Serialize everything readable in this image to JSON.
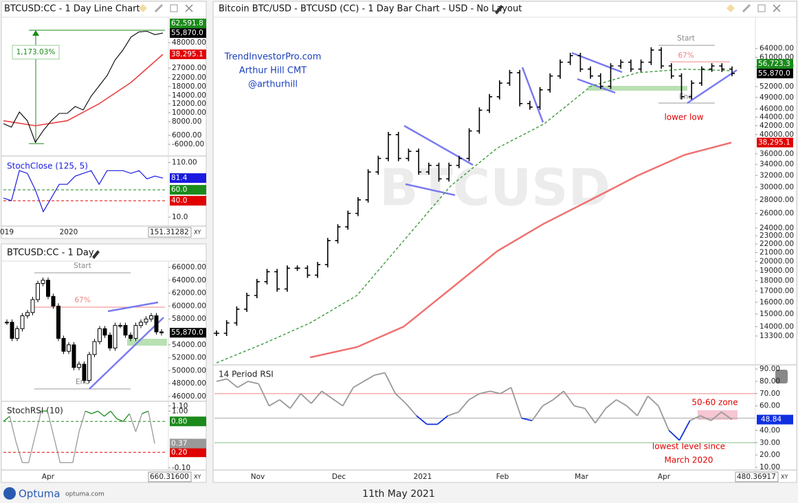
{
  "line_chart": {
    "title": "BTCUSD:CC - 1 Day Line Chart",
    "type": "line",
    "values": [
      7700,
      7200,
      10150,
      8200,
      -3230,
      6700,
      8200,
      9850,
      9850,
      11400,
      10600,
      13830,
      18300,
      23070,
      33590,
      42030,
      52590,
      56830,
      57350,
      54560,
      55870
    ],
    "color": "#000000",
    "ma": {
      "values": [
        8200,
        7400,
        8200,
        12000,
        19850,
        38295.1
      ],
      "color": "#e84040"
    },
    "yticks": [
      {
        "value": 48000,
        "label": "48000.00"
      },
      {
        "value": 27000,
        "label": "27000.00"
      },
      {
        "value": 22000,
        "label": "22000.00"
      },
      {
        "value": 18000,
        "label": "18000.00"
      },
      {
        "value": 14000,
        "label": "14000.00"
      },
      {
        "value": 12000,
        "label": "12000.00"
      },
      {
        "value": 10000,
        "label": "10000.00"
      },
      {
        "value": 8000,
        "label": "8000.00"
      },
      {
        "value": 6000,
        "label": "6000.00"
      },
      {
        "value": -6000,
        "label": "-6000.00"
      }
    ],
    "boxes": [
      {
        "value": 62591.8,
        "label": "62,591.8",
        "color": "#1a8a1a"
      },
      {
        "value": 55870,
        "label": "55,870.0",
        "color": "#000000"
      },
      {
        "value": 38295.1,
        "label": "38,295.1",
        "color": "#e00000"
      }
    ],
    "gain": "1,173.03%",
    "gain_color": "#1a8a1a"
  },
  "stoch_close": {
    "title": "StochClose (125, 5)",
    "type": "line",
    "values": [
      45,
      40,
      95,
      90,
      60,
      20,
      45,
      70,
      70,
      85,
      90,
      95,
      70,
      95,
      95,
      95,
      90,
      95,
      80,
      85,
      81.4
    ],
    "color": "#1a1ae0",
    "ylim": [
      -5,
      118
    ],
    "yticks": [
      {
        "value": 110,
        "label": "110.00"
      },
      {
        "value": 10,
        "label": "10.0"
      }
    ],
    "levels": [
      {
        "value": 60,
        "label": "60.0",
        "color": "#1a8a1a"
      },
      {
        "value": 40,
        "label": "40.0",
        "color": "#e00000"
      }
    ],
    "last": {
      "value": 81.4,
      "label": "81.4",
      "color": "#1a1ae0"
    },
    "xticks": [
      "019",
      "2020"
    ],
    "scale_value": "151.31282",
    "xy": "XY"
  },
  "day_chart": {
    "title": "BTCUSD:CC - 1 Day",
    "type": "candlestick",
    "values": [
      57500,
      55000,
      56500,
      58500,
      59000,
      61000,
      63500,
      64000,
      61500,
      60000,
      55000,
      53000,
      54000,
      50500,
      51000,
      48500,
      52500,
      54500,
      56500,
      55500,
      53500,
      57000,
      57000,
      55500,
      55000,
      57000,
      57500,
      58000,
      58500,
      56000,
      55870
    ],
    "ylim": [
      45470,
      66960
    ],
    "yticks": [
      {
        "value": 66000,
        "label": "66000.00"
      },
      {
        "value": 64000,
        "label": "64000.00"
      },
      {
        "value": 62000,
        "label": "62000.00"
      },
      {
        "value": 60000,
        "label": "60000.00"
      },
      {
        "value": 58000,
        "label": "58000.00"
      },
      {
        "value": 54000,
        "label": "54000.00"
      },
      {
        "value": 52000,
        "label": "52000.00"
      },
      {
        "value": 50000,
        "label": "50000.00"
      },
      {
        "value": 48000,
        "label": "48000.00"
      },
      {
        "value": 46000,
        "label": "46000.00"
      }
    ],
    "boxes": [
      {
        "value": 55870,
        "label": "55,870.0",
        "color": "#000000"
      }
    ],
    "start": "Start",
    "fib": "67%",
    "end": "End"
  },
  "stoch_rsi": {
    "title": "StochRSI (10)",
    "type": "line",
    "values": [
      0.8,
      0.9,
      0.4,
      0.0,
      0.0,
      0.5,
      1.0,
      1.0,
      0.5,
      0.0,
      0.0,
      0.0,
      0.6,
      1.0,
      0.95,
      1.0,
      0.9,
      1.0,
      0.85,
      0.8,
      0.95,
      0.6,
      0.95,
      1.0,
      0.37
    ],
    "color": "#999999",
    "high_color": "#1a8a1a",
    "ylim": [
      -0.13,
      1.15
    ],
    "yticks": [
      {
        "value": 1.1,
        "label": "1.10"
      },
      {
        "value": 1.0,
        "label": "1.00"
      },
      {
        "value": -0.1,
        "label": "-0.10"
      }
    ],
    "levels": [
      {
        "value": 0.8,
        "label": "0.80",
        "color": "#1a8a1a"
      },
      {
        "value": 0.2,
        "label": "0.20",
        "color": "#e00000"
      }
    ],
    "last": {
      "value": 0.37,
      "label": "0.37",
      "color": "#999999"
    },
    "xticks": [
      "Apr"
    ],
    "scale_value": "660.31600",
    "xy": "XY"
  },
  "main": {
    "title": "Bitcoin BTC/USD - BTCUSD (CC) - 1 Day Bar Chart - USD - No Layout",
    "type": "bar",
    "log_scale": true,
    "watermark": "BTCUSD",
    "price": {
      "color": "#000000",
      "values": [
        13500,
        14280,
        15400,
        16600,
        17900,
        18900,
        17200,
        19270,
        19270,
        18550,
        19650,
        22400,
        24150,
        26000,
        28000,
        32600,
        35100,
        40000,
        35100,
        36500,
        32600,
        33800,
        31400,
        33800,
        35100,
        40800,
        45700,
        49200,
        53000,
        56100,
        47400,
        46500,
        51100,
        55100,
        59400,
        61600,
        57200,
        55100,
        52100,
        58200,
        59400,
        57200,
        59400,
        63500,
        58200,
        55100,
        49200,
        53000,
        57200,
        58200,
        57200,
        55870
      ]
    },
    "ma_fast": {
      "color": "#3a9a3a",
      "dashed": true,
      "values": [
        11480,
        12750,
        14280,
        16600,
        22400,
        30200,
        37150,
        42400,
        52100,
        56100,
        57200,
        56723.3
      ]
    },
    "ma_slow": {
      "color": "#f07070",
      "dashed": false,
      "values": [
        null,
        null,
        11830,
        12520,
        14000,
        17200,
        21160,
        24600,
        28000,
        31970,
        35800,
        38295.1
      ]
    },
    "ylim": [
      11400,
      76000
    ],
    "yticks": [
      {
        "value": 64000,
        "label": "64000.00"
      },
      {
        "value": 61000,
        "label": "61000.00"
      },
      {
        "value": 58000,
        "label": "58000.00"
      },
      {
        "value": 52000,
        "label": "52000.00"
      },
      {
        "value": 49000,
        "label": "49000.00"
      },
      {
        "value": 46000,
        "label": "46000.00"
      },
      {
        "value": 44000,
        "label": "44000.00"
      },
      {
        "value": 42000,
        "label": "42000.00"
      },
      {
        "value": 40000,
        "label": "40000.00"
      },
      {
        "value": 36000,
        "label": "36000.00"
      },
      {
        "value": 34000,
        "label": "34000.00"
      },
      {
        "value": 32000,
        "label": "32000.00"
      },
      {
        "value": 30000,
        "label": "30000.00"
      },
      {
        "value": 28000,
        "label": "28000.00"
      },
      {
        "value": 26000,
        "label": "26000.00"
      },
      {
        "value": 24000,
        "label": "24000.00"
      },
      {
        "value": 23000,
        "label": "23000.00"
      },
      {
        "value": 22000,
        "label": "22000.00"
      },
      {
        "value": 21000,
        "label": "21000.00"
      },
      {
        "value": 20000,
        "label": "20000.00"
      },
      {
        "value": 19000,
        "label": "19000.00"
      },
      {
        "value": 18000,
        "label": "18000.00"
      },
      {
        "value": 17000,
        "label": "17000.00"
      },
      {
        "value": 16000,
        "label": "16000.00"
      },
      {
        "value": 15000,
        "label": "15000.00"
      },
      {
        "value": 14000,
        "label": "14000.00"
      },
      {
        "value": 13300,
        "label": "13300.00"
      }
    ],
    "boxes": [
      {
        "value": 56723.3,
        "label": "56,723.3",
        "color": "#1a8a1a"
      },
      {
        "value": 55870,
        "label": "55,870.0",
        "color": "#000000"
      },
      {
        "value": 38295.1,
        "label": "38,295.1",
        "color": "#e00000"
      }
    ],
    "xticks": [
      "Nov",
      "Dec",
      "2021",
      "Feb",
      "Mar",
      "Apr"
    ],
    "scale_value": "480.36917",
    "xy": "XY",
    "credit": [
      "TrendInvestorPro.com",
      "Arthur Hill CMT",
      "@arthurhill"
    ],
    "start": "Start",
    "fib": "67%",
    "end": "End",
    "lower_low": "lower low"
  },
  "rsi": {
    "title": "14 Period RSI",
    "type": "line",
    "values": [
      80,
      82,
      75,
      80,
      78,
      60,
      65,
      58,
      70,
      62,
      72,
      66,
      60,
      75,
      80,
      85,
      87,
      70,
      62,
      52,
      45,
      45,
      52,
      55,
      65,
      70,
      72,
      70,
      75,
      50,
      48,
      60,
      65,
      72,
      60,
      58,
      46,
      58,
      65,
      60,
      52,
      68,
      60,
      40,
      32,
      48,
      52,
      48,
      55,
      48.84
    ],
    "color": "#999999",
    "low_color": "#1030e0",
    "ylim": [
      8.3,
      92.3
    ],
    "yticks": [
      {
        "value": 90,
        "label": "90.00"
      },
      {
        "value": 80,
        "label": "80.00"
      },
      {
        "value": 70,
        "label": "70.00"
      },
      {
        "value": 60,
        "label": "60.00"
      },
      {
        "value": 40,
        "label": "40.00"
      },
      {
        "value": 30,
        "label": "30.00"
      },
      {
        "value": 20,
        "label": "20.00"
      },
      {
        "value": 10,
        "label": "10.00"
      }
    ],
    "levels": [
      {
        "value": 70,
        "color": "#f08080"
      },
      {
        "value": 50,
        "color": "#aaaaaa"
      },
      {
        "value": 30,
        "color": "#80c080"
      }
    ],
    "last": {
      "value": 48.84,
      "color": "#1030e0"
    },
    "zone": "50-60 zone",
    "note": [
      "lowest level since",
      "March 2020"
    ]
  },
  "footer": {
    "logo": "Optuma",
    "site": "optuma.com",
    "date": "11th May 2021"
  }
}
